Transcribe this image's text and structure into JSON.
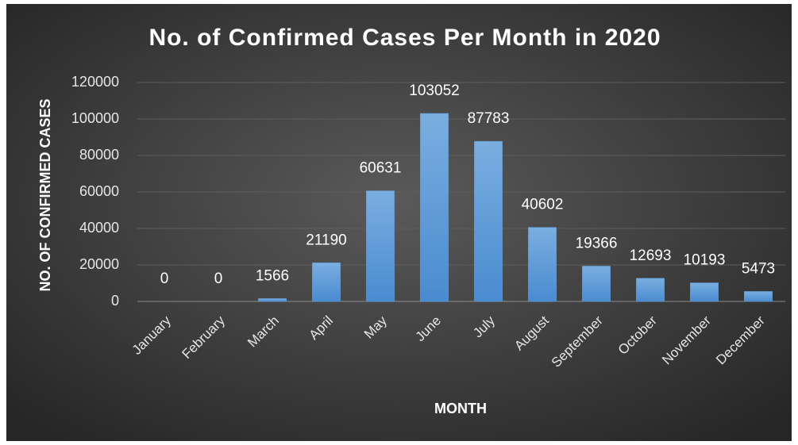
{
  "chart_data": {
    "type": "bar",
    "title": "No. of Confirmed Cases Per Month in 2020",
    "x_label": "MONTH",
    "y_label": "NO. OF CONFIRMED CASES",
    "categories": [
      "January",
      "February",
      "March",
      "April",
      "May",
      "June",
      "July",
      "August",
      "September",
      "October",
      "November",
      "December"
    ],
    "values": [
      0,
      0,
      1566,
      21190,
      60631,
      103052,
      87783,
      40602,
      19366,
      12693,
      10193,
      5473
    ],
    "color": "#5b9bd5",
    "ylim": [
      0,
      120000
    ],
    "yticks": [
      0,
      20000,
      40000,
      60000,
      80000,
      100000,
      120000
    ],
    "grid": true
  }
}
